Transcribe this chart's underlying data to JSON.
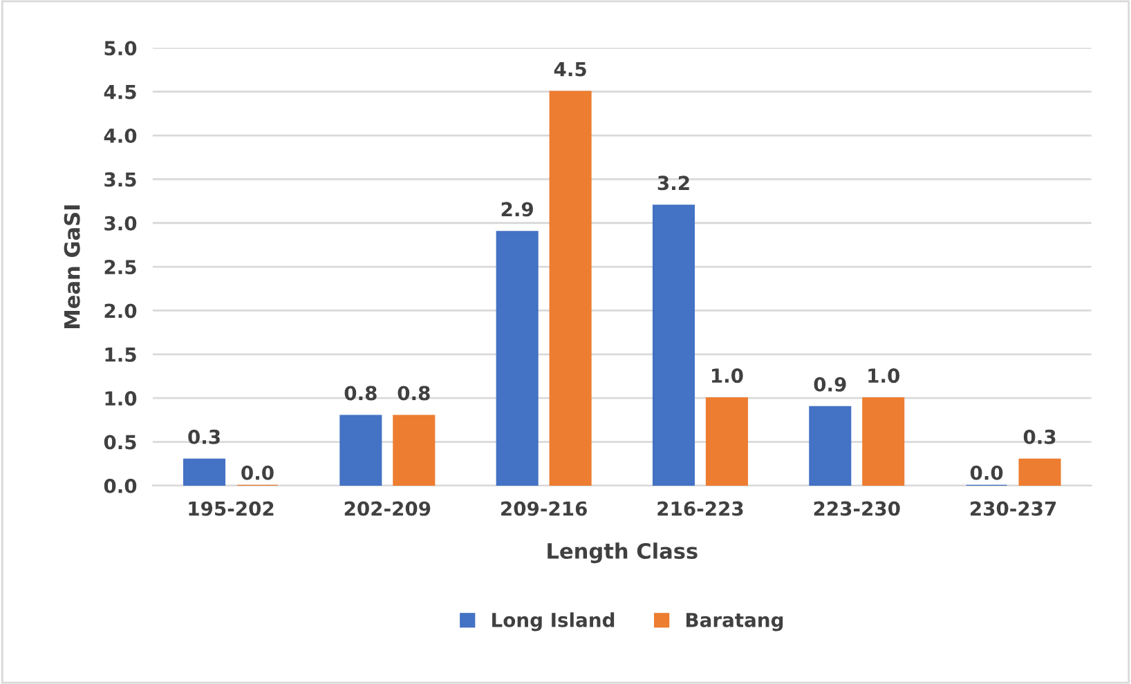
{
  "chart_data": {
    "type": "bar",
    "xlabel": "Length Class",
    "ylabel": "Mean GaSI",
    "categories": [
      "195-202",
      "202-209",
      "209-216",
      "216-223",
      "223-230",
      "230-237"
    ],
    "series": [
      {
        "name": "Long Island",
        "color": "#4472c4",
        "values": [
          0.3,
          0.8,
          2.9,
          3.2,
          0.9,
          0.0
        ],
        "value_labels": [
          "0.3",
          "0.8",
          "2.9",
          "3.2",
          "0.9",
          "0.0"
        ]
      },
      {
        "name": "Baratang",
        "color": "#ed7d31",
        "values": [
          0.0,
          0.8,
          4.5,
          1.0,
          1.0,
          0.3
        ],
        "value_labels": [
          "0.0",
          "0.8",
          "4.5",
          "1.0",
          "1.0",
          "0.3"
        ]
      }
    ],
    "ylim": [
      0,
      5
    ],
    "yticks": [
      "0.0",
      "0.5",
      "1.0",
      "1.5",
      "2.0",
      "2.5",
      "3.0",
      "3.5",
      "4.0",
      "4.5",
      "5.0"
    ],
    "grid": "y",
    "legend": "bottom"
  }
}
